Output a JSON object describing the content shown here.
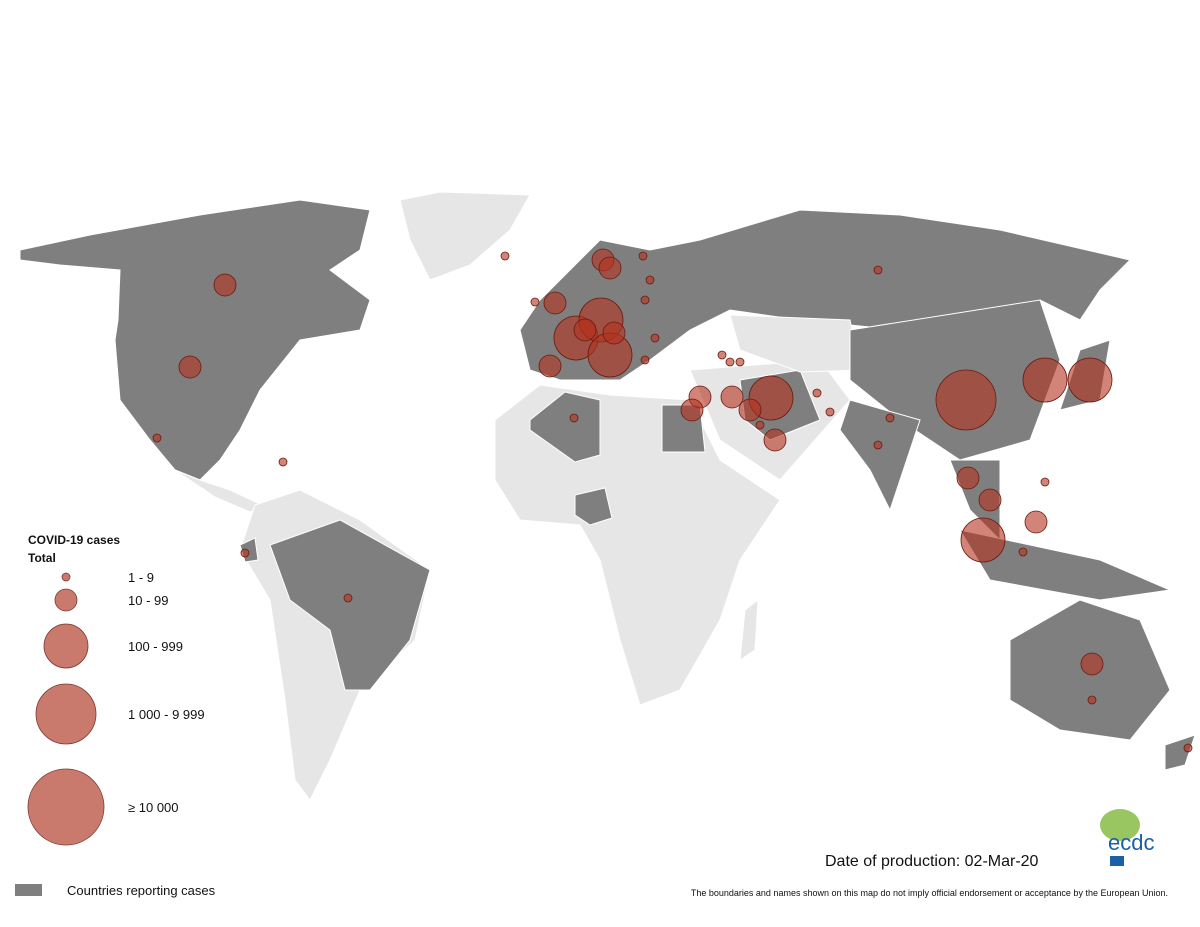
{
  "legend": {
    "title": "COVID-19 cases",
    "subtitle": "Total",
    "classes": [
      "1 - 9",
      "10 - 99",
      "100 - 999",
      "1 000 - 9 999",
      "≥ 10 000"
    ],
    "reporting": "Countries reporting cases"
  },
  "date": "Date of production: 02-Mar-20",
  "disclaimer": "The boundaries and names shown on this map do not imply official endorsement or acceptance by the European Union.",
  "logo": "ecdc"
}
